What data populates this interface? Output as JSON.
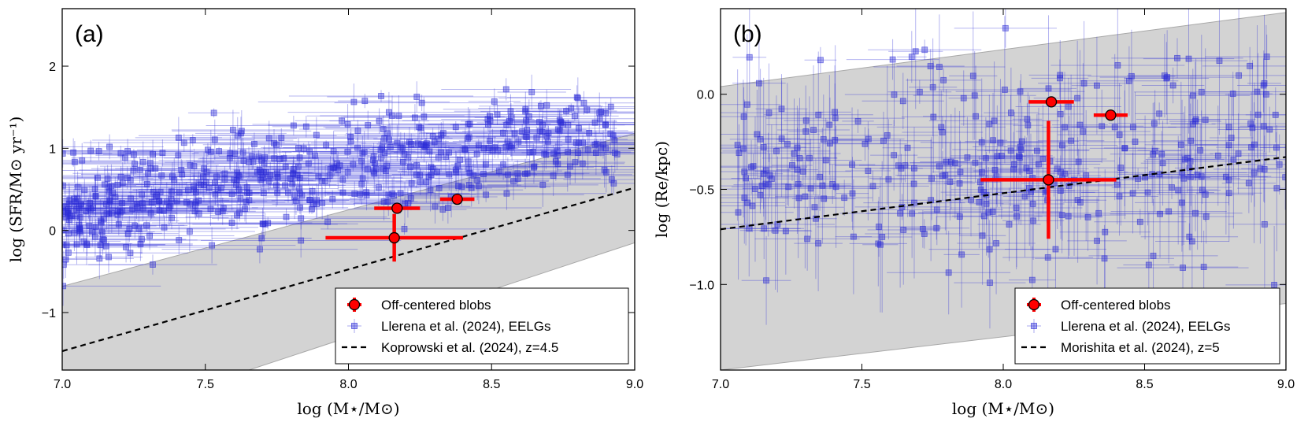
{
  "chart_data": [
    {
      "type": "scatter",
      "tag": "(a)",
      "xlabel": "log (M⋆/M⊙)",
      "ylabel": "log (SFR/M⊙ yr⁻¹)",
      "xlim": [
        7.0,
        9.0
      ],
      "ylim": [
        -1.7,
        2.7
      ],
      "xticks": [
        "7.0",
        "7.5",
        "8.0",
        "8.5",
        "9.0"
      ],
      "yticks": [
        "−1",
        "0",
        "1",
        "2"
      ],
      "band": {
        "lower": [
          [
            7.0,
            -2.45
          ],
          [
            9.0,
            -0.15
          ]
        ],
        "upper": [
          [
            7.0,
            -0.68
          ],
          [
            9.0,
            1.18
          ]
        ]
      },
      "relation": {
        "name": "Koprowski et al. (2024), z=4.5",
        "points": [
          [
            7.0,
            -1.47
          ],
          [
            9.0,
            0.52
          ]
        ]
      },
      "eelgs": {
        "name": "Llerena et al. (2024), EELGs",
        "n": 560,
        "seed": 11
      },
      "blobs": {
        "name": "Off-centered blobs",
        "points": [
          {
            "x": 8.17,
            "y": 0.27,
            "xerr": [
              0.08,
              0.08
            ],
            "yerr": [
              0.0,
              0.0
            ]
          },
          {
            "x": 8.38,
            "y": 0.38,
            "xerr": [
              0.06,
              0.06
            ],
            "yerr": [
              0.0,
              0.0
            ]
          },
          {
            "x": 8.16,
            "y": -0.09,
            "xerr": [
              0.24,
              0.24
            ],
            "yerr": [
              0.29,
              0.29
            ]
          }
        ]
      },
      "legend": {
        "location": "lower-right",
        "entries": [
          "Off-centered blobs",
          "Llerena et al. (2024), EELGs",
          "Koprowski et al. (2024), z=4.5"
        ]
      }
    },
    {
      "type": "scatter",
      "tag": "(b)",
      "xlabel": "log (M⋆/M⊙)",
      "ylabel": "log (Re/kpc)",
      "xlim": [
        7.0,
        9.0
      ],
      "ylim": [
        -1.45,
        0.45
      ],
      "xticks": [
        "7.0",
        "7.5",
        "8.0",
        "8.5",
        "9.0"
      ],
      "yticks": [
        "−1.0",
        "−0.5",
        "0.0"
      ],
      "band": {
        "lower": [
          [
            7.0,
            -1.45
          ],
          [
            9.0,
            -1.1
          ]
        ],
        "upper": [
          [
            7.0,
            0.04
          ],
          [
            9.0,
            0.43
          ]
        ]
      },
      "relation": {
        "name": "Morishita et al. (2024), z=5",
        "points": [
          [
            7.0,
            -0.71
          ],
          [
            9.0,
            -0.33
          ]
        ]
      },
      "eelgs": {
        "name": "Llerena et al. (2024), EELGs",
        "n": 330,
        "seed": 23
      },
      "blobs": {
        "name": "Off-centered blobs",
        "points": [
          {
            "x": 8.17,
            "y": -0.04,
            "xerr": [
              0.08,
              0.08
            ],
            "yerr": [
              0.0,
              0.0
            ]
          },
          {
            "x": 8.38,
            "y": -0.11,
            "xerr": [
              0.06,
              0.06
            ],
            "yerr": [
              0.0,
              0.0
            ]
          },
          {
            "x": 8.16,
            "y": -0.45,
            "xerr": [
              0.24,
              0.24
            ],
            "yerr": [
              0.31,
              0.31
            ]
          }
        ]
      },
      "legend": {
        "location": "lower-right",
        "entries": [
          "Off-centered blobs",
          "Llerena et al. (2024), EELGs",
          "Morishita et al. (2024), z=5"
        ]
      }
    }
  ],
  "colors": {
    "eelg": "#2b2bd6",
    "blob": "#ff0000",
    "band": "#d3d3d3",
    "relation": "#000000"
  }
}
